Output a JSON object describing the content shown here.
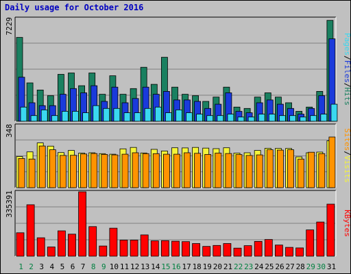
{
  "title": "Daily usage for October 2016",
  "chart_data": [
    {
      "type": "bar",
      "panel": "hits-files-pages",
      "y_max_label": "7229",
      "ylim": [
        0,
        7229
      ],
      "legend_labels": [
        "Pages",
        "Files",
        "Hits"
      ],
      "legend_separator": "/",
      "grid": true,
      "categories": [
        "1",
        "2",
        "3",
        "4",
        "5",
        "6",
        "7",
        "8",
        "9",
        "10",
        "11",
        "12",
        "13",
        "14",
        "15",
        "16",
        "17",
        "18",
        "19",
        "20",
        "21",
        "22",
        "23",
        "24",
        "25",
        "26",
        "27",
        "28",
        "29",
        "30",
        "31"
      ],
      "weekend_days": [
        "1",
        "2",
        "8",
        "9",
        "15",
        "16",
        "22",
        "23",
        "29",
        "30"
      ],
      "series": [
        {
          "name": "Hits",
          "color": "#1a8060",
          "values": [
            5900,
            2700,
            2200,
            1800,
            3300,
            3400,
            2500,
            3400,
            1900,
            3200,
            1900,
            2300,
            3800,
            2600,
            4500,
            2400,
            1900,
            1800,
            1400,
            1700,
            2400,
            1000,
            900,
            1700,
            2000,
            1700,
            1300,
            700,
            1000,
            2100,
            7100
          ]
        },
        {
          "name": "Files",
          "color": "#1a3adb",
          "values": [
            3100,
            1300,
            1100,
            1100,
            1900,
            2300,
            2000,
            2500,
            1400,
            2400,
            1300,
            1600,
            2400,
            1900,
            2100,
            1500,
            1500,
            1400,
            900,
            1200,
            2000,
            700,
            600,
            1300,
            1500,
            1200,
            900,
            500,
            900,
            1800,
            5800
          ]
        },
        {
          "name": "Pages",
          "color": "#3ad8f0",
          "values": [
            1000,
            400,
            800,
            400,
            700,
            700,
            600,
            1100,
            900,
            900,
            600,
            600,
            900,
            1000,
            600,
            800,
            600,
            500,
            400,
            400,
            500,
            300,
            300,
            500,
            500,
            400,
            400,
            300,
            400,
            500,
            1200
          ]
        }
      ]
    },
    {
      "type": "bar",
      "panel": "visits-sites",
      "y_max_label": "348",
      "ylim": [
        0,
        348
      ],
      "legend_labels": [
        "Sites",
        "Visits"
      ],
      "legend_separator": "/",
      "grid": true,
      "categories": [
        "1",
        "2",
        "3",
        "4",
        "5",
        "6",
        "7",
        "8",
        "9",
        "10",
        "11",
        "12",
        "13",
        "14",
        "15",
        "16",
        "17",
        "18",
        "19",
        "20",
        "21",
        "22",
        "23",
        "24",
        "25",
        "26",
        "27",
        "28",
        "29",
        "30",
        "31"
      ],
      "series": [
        {
          "name": "Visits",
          "color": "#f4f43a",
          "values": [
            174,
            200,
            250,
            232,
            196,
            208,
            193,
            195,
            190,
            187,
            217,
            225,
            194,
            214,
            205,
            223,
            222,
            225,
            221,
            218,
            223,
            193,
            195,
            208,
            220,
            219,
            219,
            172,
            195,
            199,
            262
          ]
        },
        {
          "name": "Sites",
          "color": "#ff9300",
          "values": [
            163,
            160,
            233,
            212,
            180,
            181,
            188,
            191,
            186,
            183,
            187,
            195,
            190,
            190,
            187,
            187,
            195,
            192,
            186,
            193,
            191,
            185,
            180,
            183,
            212,
            210,
            212,
            160,
            198,
            190,
            283
          ]
        }
      ]
    },
    {
      "type": "bar",
      "panel": "kbytes",
      "y_max_label": "335391",
      "ylim": [
        0,
        335391
      ],
      "legend_labels": [
        "KBytes"
      ],
      "grid": true,
      "categories": [
        "1",
        "2",
        "3",
        "4",
        "5",
        "6",
        "7",
        "8",
        "9",
        "10",
        "11",
        "12",
        "13",
        "14",
        "15",
        "16",
        "17",
        "18",
        "19",
        "20",
        "21",
        "22",
        "23",
        "24",
        "25",
        "26",
        "27",
        "28",
        "29",
        "30",
        "31"
      ],
      "series": [
        {
          "name": "KBytes",
          "color": "#ff0000",
          "values": [
            122000,
            268000,
            96000,
            48000,
            132000,
            115000,
            335391,
            154000,
            53000,
            146000,
            84000,
            84000,
            111000,
            80000,
            81000,
            78000,
            76000,
            66000,
            51000,
            56000,
            66000,
            42000,
            55000,
            77000,
            87000,
            58000,
            46000,
            43000,
            137000,
            178000,
            271000
          ]
        }
      ]
    }
  ]
}
